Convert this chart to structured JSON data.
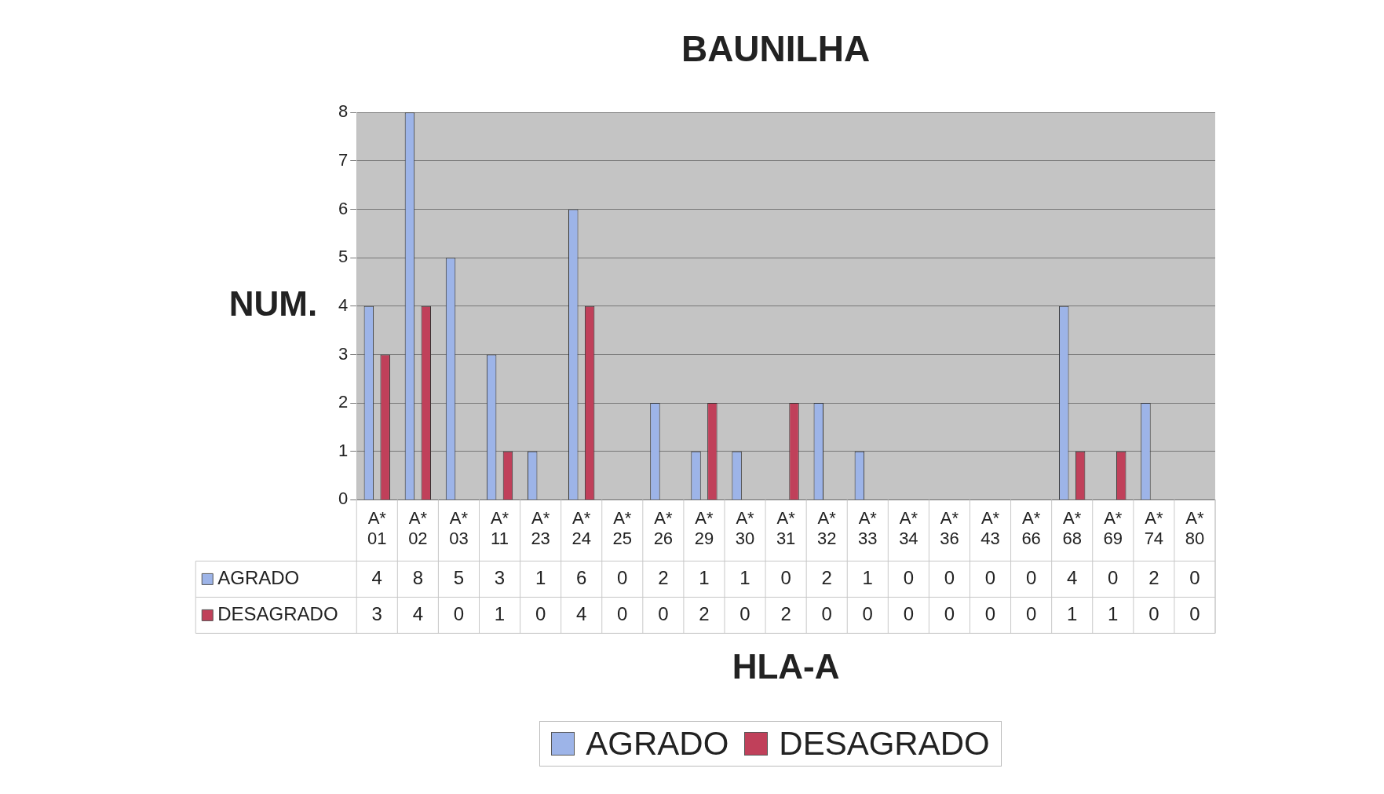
{
  "chart_data": {
    "type": "bar",
    "title": "BAUNILHA",
    "xlabel": "HLA-A",
    "ylabel": "NUM.",
    "categories": [
      "A* 01",
      "A* 02",
      "A* 03",
      "A* 11",
      "A* 23",
      "A* 24",
      "A* 25",
      "A* 26",
      "A* 29",
      "A* 30",
      "A* 31",
      "A* 32",
      "A* 33",
      "A* 34",
      "A* 36",
      "A* 43",
      "A* 66",
      "A* 68",
      "A* 69",
      "A* 74",
      "A* 80"
    ],
    "series": [
      {
        "name": "AGRADO",
        "color": "#9db4e8",
        "values": [
          4,
          8,
          5,
          3,
          1,
          6,
          0,
          2,
          1,
          1,
          0,
          2,
          1,
          0,
          0,
          0,
          0,
          4,
          0,
          2,
          0
        ]
      },
      {
        "name": "DESAGRADO",
        "color": "#c0405a",
        "values": [
          3,
          4,
          0,
          1,
          0,
          4,
          0,
          0,
          2,
          0,
          2,
          0,
          0,
          0,
          0,
          0,
          0,
          1,
          1,
          0,
          0
        ]
      }
    ],
    "ylim": [
      0,
      8
    ],
    "yticks": [
      0,
      1,
      2,
      3,
      4,
      5,
      6,
      7,
      8
    ],
    "grid": "y",
    "legend": "bottom",
    "data_labels": true
  }
}
